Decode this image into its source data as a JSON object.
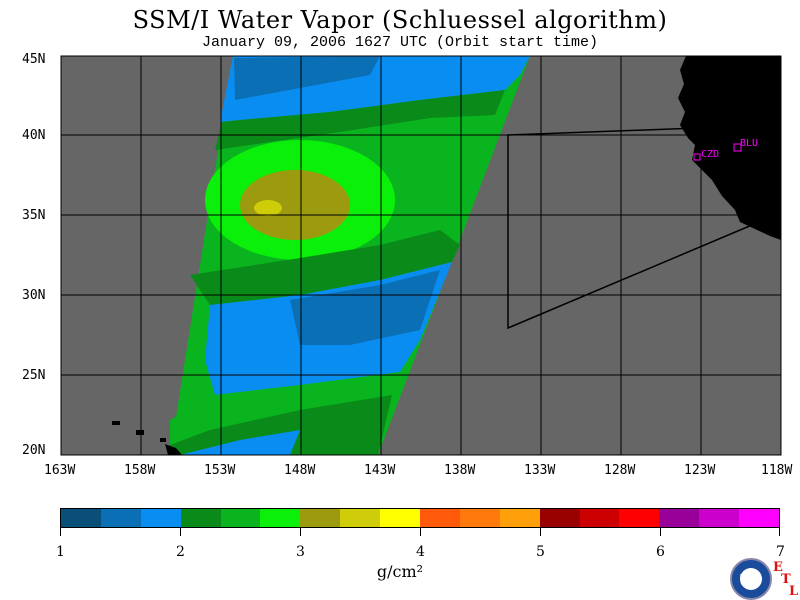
{
  "title": "SSM/I Water Vapor (Schluessel algorithm)",
  "subtitle": "January 09, 2006  1627 UTC  (Orbit start time)",
  "map": {
    "lat_labels": [
      "45N",
      "40N",
      "35N",
      "30N",
      "25N",
      "20N"
    ],
    "lon_labels": [
      "163W",
      "158W",
      "153W",
      "148W",
      "143W",
      "138W",
      "133W",
      "128W",
      "123W",
      "118W"
    ],
    "stations": [
      {
        "label": "CZD"
      },
      {
        "label": "BLU"
      }
    ],
    "colors": {
      "land": "#000000",
      "no_data": "#666666",
      "grid": "#000000",
      "station": "#ff00ff"
    }
  },
  "colorbar": {
    "colors": [
      "#0a4f7a",
      "#0a6fb5",
      "#0a8df0",
      "#0a8a18",
      "#0ab41e",
      "#0af00a",
      "#9c9a0e",
      "#cfcc0a",
      "#ffff00",
      "#ff5a0a",
      "#ff7a0a",
      "#ffa00a",
      "#990000",
      "#cc0000",
      "#ff0000",
      "#990099",
      "#cc00cc",
      "#ff00ff"
    ],
    "tick_labels": [
      "1",
      "2",
      "3",
      "4",
      "5",
      "6",
      "7"
    ],
    "units": "g/cm²"
  },
  "logo": {
    "name": "NOAA",
    "etl": [
      "E",
      "T",
      "L"
    ]
  }
}
